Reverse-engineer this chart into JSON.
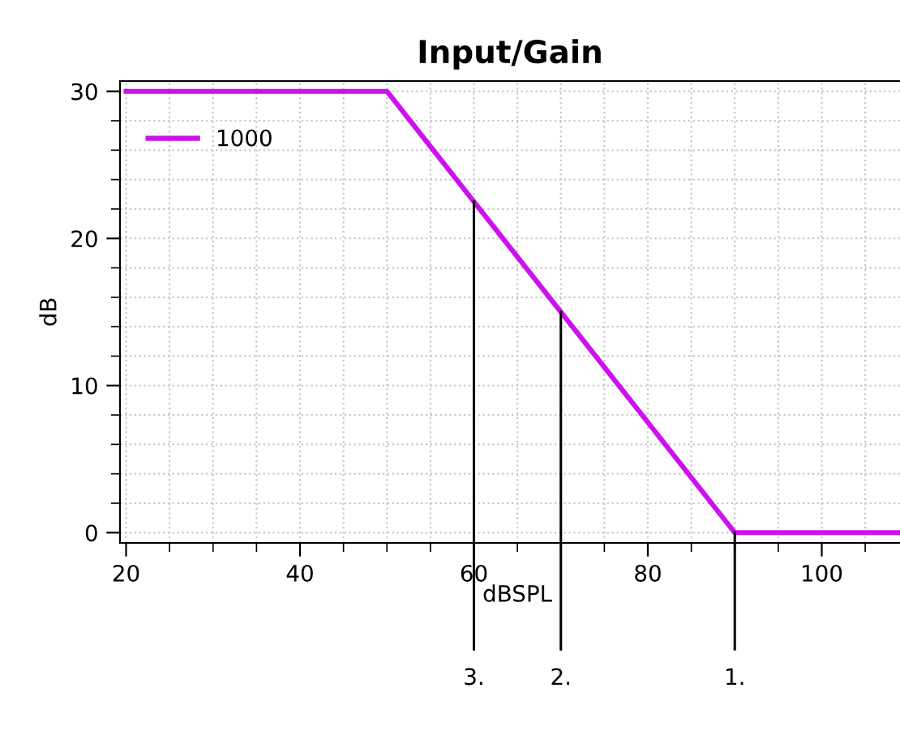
{
  "chart_data": {
    "type": "line",
    "title": "Input/Gain",
    "xlabel": "dBSPL",
    "ylabel": "dB",
    "x": [
      20,
      50,
      90,
      109
    ],
    "series": [
      {
        "name": "1000",
        "color": "#cc11ee",
        "values": [
          30,
          30,
          0,
          0
        ]
      }
    ],
    "xlim": [
      19.3,
      109
    ],
    "ylim": [
      -0.7,
      30.7
    ],
    "xticks": [
      20,
      40,
      60,
      80,
      100
    ],
    "yticks": [
      0,
      10,
      20,
      30
    ],
    "grid": true,
    "legend": "top left",
    "marker": "none",
    "line_style": "solid",
    "annotations": [
      {
        "text": "3.",
        "x": 60,
        "y": 22.5
      },
      {
        "text": "2.",
        "x": 70,
        "y": 15
      },
      {
        "text": "1.",
        "x": 90,
        "y": 0
      }
    ]
  }
}
